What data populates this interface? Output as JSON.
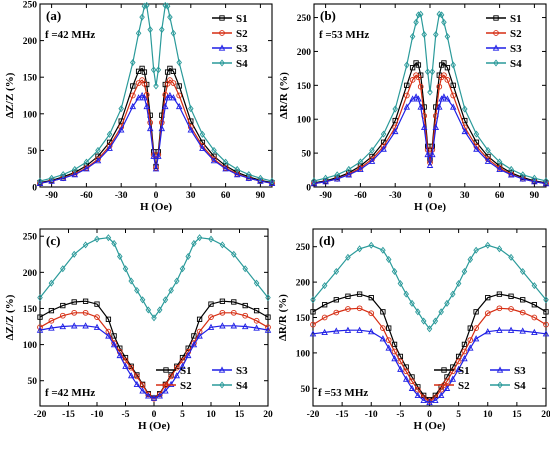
{
  "colors": {
    "S1": "#000000",
    "S2": "#d62d12",
    "S3": "#1f1fe6",
    "S4": "#2a9a9a"
  },
  "chart_data": [
    {
      "type": "line",
      "panel_label": "(a)",
      "annotation": "f =42 MHz",
      "xlabel": "H (Oe)",
      "ylabel": "ΔZ/Z (%)",
      "xlim": [
        -100,
        100
      ],
      "ylim": [
        0,
        250
      ],
      "xticks": [
        -90,
        -60,
        -30,
        0,
        30,
        60,
        90
      ],
      "yticks": [
        0,
        50,
        100,
        150,
        200,
        250
      ],
      "legend_position": "top-right",
      "legend_layout": "column",
      "x": [
        -100,
        -90,
        -80,
        -70,
        -60,
        -50,
        -40,
        -30,
        -20,
        -15,
        -12,
        -10,
        -8,
        -5,
        -2,
        0,
        2,
        5,
        8,
        10,
        12,
        15,
        20,
        30,
        40,
        50,
        60,
        70,
        80,
        90,
        100
      ],
      "series": [
        {
          "name": "S1",
          "values": [
            6,
            9,
            14,
            20,
            29,
            42,
            61,
            90,
            138,
            158,
            162,
            157,
            140,
            98,
            48,
            28,
            48,
            98,
            140,
            157,
            162,
            158,
            138,
            90,
            61,
            42,
            29,
            20,
            14,
            9,
            6
          ]
        },
        {
          "name": "S2",
          "values": [
            5,
            8,
            12,
            18,
            26,
            38,
            56,
            82,
            125,
            142,
            146,
            141,
            126,
            88,
            44,
            26,
            44,
            88,
            126,
            141,
            146,
            142,
            125,
            82,
            56,
            38,
            26,
            18,
            12,
            8,
            5
          ]
        },
        {
          "name": "S3",
          "values": [
            5,
            8,
            12,
            17,
            25,
            36,
            53,
            78,
            110,
            122,
            125,
            122,
            110,
            80,
            42,
            25,
            42,
            80,
            110,
            122,
            125,
            122,
            110,
            78,
            53,
            36,
            25,
            17,
            12,
            8,
            5
          ]
        },
        {
          "name": "S4",
          "values": [
            8,
            12,
            17,
            24,
            34,
            50,
            72,
            107,
            170,
            210,
            232,
            247,
            248,
            215,
            160,
            138,
            160,
            215,
            248,
            247,
            232,
            210,
            170,
            107,
            72,
            50,
            34,
            24,
            17,
            12,
            8
          ]
        }
      ]
    },
    {
      "type": "line",
      "panel_label": "(b)",
      "annotation": "f =53 MHz",
      "xlabel": "H (Oe)",
      "ylabel": "ΔR/R (%)",
      "xlim": [
        -100,
        100
      ],
      "ylim": [
        0,
        270
      ],
      "xticks": [
        -90,
        -60,
        -30,
        0,
        30,
        60,
        90
      ],
      "yticks": [
        0,
        50,
        100,
        150,
        200,
        250
      ],
      "legend_position": "top-right",
      "legend_layout": "column",
      "x": [
        -100,
        -90,
        -80,
        -70,
        -60,
        -50,
        -40,
        -30,
        -20,
        -15,
        -12,
        -10,
        -8,
        -5,
        -2,
        0,
        2,
        5,
        8,
        10,
        12,
        15,
        20,
        30,
        40,
        50,
        60,
        70,
        80,
        90,
        100
      ],
      "series": [
        {
          "name": "S1",
          "values": [
            6,
            9,
            14,
            21,
            31,
            45,
            66,
            98,
            150,
            176,
            183,
            180,
            165,
            118,
            60,
            40,
            60,
            118,
            165,
            180,
            183,
            176,
            150,
            98,
            66,
            45,
            31,
            21,
            14,
            9,
            6
          ]
        },
        {
          "name": "S2",
          "values": [
            5,
            8,
            12,
            19,
            28,
            41,
            60,
            88,
            135,
            158,
            165,
            162,
            148,
            105,
            55,
            36,
            55,
            105,
            148,
            162,
            165,
            158,
            135,
            88,
            60,
            41,
            28,
            19,
            12,
            8,
            5
          ]
        },
        {
          "name": "S3",
          "values": [
            5,
            8,
            12,
            18,
            26,
            38,
            56,
            82,
            118,
            130,
            133,
            130,
            118,
            88,
            48,
            32,
            48,
            88,
            118,
            130,
            133,
            130,
            118,
            82,
            56,
            38,
            26,
            18,
            12,
            8,
            5
          ]
        },
        {
          "name": "S4",
          "values": [
            9,
            13,
            18,
            26,
            37,
            54,
            78,
            115,
            180,
            222,
            243,
            254,
            255,
            225,
            170,
            140,
            170,
            225,
            255,
            254,
            243,
            222,
            180,
            115,
            78,
            54,
            37,
            26,
            18,
            13,
            9
          ]
        }
      ]
    },
    {
      "type": "line",
      "panel_label": "(c)",
      "annotation": "f =42 MHz",
      "xlabel": "H (Oe)",
      "ylabel": "ΔZ/Z (%)",
      "xlim": [
        -20,
        20
      ],
      "ylim": [
        15,
        260
      ],
      "xticks": [
        -20,
        -15,
        -10,
        -5,
        0,
        5,
        10,
        15,
        20
      ],
      "yticks": [
        50,
        100,
        150,
        200,
        250
      ],
      "legend_position": "bottom-right",
      "legend_layout": "grid",
      "x": [
        -20,
        -18,
        -16,
        -14,
        -12,
        -10,
        -8,
        -7,
        -6,
        -5,
        -4,
        -3,
        -2,
        -1,
        0,
        1,
        2,
        3,
        4,
        5,
        6,
        7,
        8,
        10,
        12,
        14,
        16,
        18,
        20
      ],
      "series": [
        {
          "name": "S1",
          "values": [
            138,
            147,
            154,
            159,
            160,
            156,
            135,
            112,
            95,
            82,
            70,
            58,
            45,
            32,
            26,
            32,
            45,
            58,
            70,
            82,
            95,
            112,
            135,
            156,
            160,
            159,
            154,
            147,
            138
          ]
        },
        {
          "name": "S2",
          "values": [
            124,
            133,
            140,
            144,
            144,
            138,
            118,
            102,
            90,
            78,
            68,
            56,
            44,
            31,
            25,
            31,
            44,
            56,
            68,
            78,
            90,
            102,
            118,
            138,
            144,
            144,
            140,
            133,
            124
          ]
        },
        {
          "name": "S3",
          "values": [
            120,
            123,
            125,
            126,
            126,
            124,
            112,
            100,
            85,
            70,
            57,
            45,
            36,
            29,
            26,
            29,
            36,
            45,
            57,
            70,
            85,
            100,
            112,
            124,
            126,
            126,
            125,
            123,
            120
          ]
        },
        {
          "name": "S4",
          "values": [
            165,
            185,
            205,
            225,
            238,
            246,
            248,
            240,
            222,
            205,
            188,
            175,
            162,
            148,
            137,
            148,
            162,
            175,
            188,
            205,
            222,
            240,
            248,
            246,
            238,
            225,
            205,
            185,
            165
          ]
        }
      ]
    },
    {
      "type": "line",
      "panel_label": "(d)",
      "annotation": "f =53 MHz",
      "xlabel": "H (Oe)",
      "ylabel": "ΔR/R (%)",
      "xlim": [
        -20,
        20
      ],
      "ylim": [
        25,
        275
      ],
      "xticks": [
        -20,
        -15,
        -10,
        -5,
        0,
        5,
        10,
        15,
        20
      ],
      "yticks": [
        50,
        100,
        150,
        200,
        250
      ],
      "legend_position": "bottom-right",
      "legend_layout": "grid",
      "x": [
        -20,
        -18,
        -16,
        -14,
        -12,
        -10,
        -8,
        -7,
        -6,
        -5,
        -4,
        -3,
        -2,
        -1,
        0,
        1,
        2,
        3,
        4,
        5,
        6,
        7,
        8,
        10,
        12,
        14,
        16,
        18,
        20
      ],
      "series": [
        {
          "name": "S1",
          "values": [
            158,
            168,
            175,
            180,
            183,
            178,
            158,
            135,
            112,
            95,
            80,
            66,
            52,
            40,
            34,
            40,
            52,
            66,
            80,
            95,
            112,
            135,
            158,
            178,
            183,
            180,
            175,
            168,
            158
          ]
        },
        {
          "name": "S2",
          "values": [
            140,
            150,
            157,
            162,
            163,
            156,
            135,
            118,
            102,
            88,
            74,
            60,
            48,
            37,
            32,
            37,
            48,
            60,
            74,
            88,
            102,
            118,
            135,
            156,
            163,
            162,
            157,
            150,
            140
          ]
        },
        {
          "name": "S3",
          "values": [
            127,
            129,
            131,
            132,
            132,
            130,
            120,
            107,
            92,
            77,
            63,
            50,
            40,
            33,
            30,
            33,
            40,
            50,
            63,
            77,
            92,
            107,
            120,
            130,
            132,
            132,
            131,
            129,
            127
          ]
        },
        {
          "name": "S4",
          "values": [
            175,
            195,
            215,
            235,
            247,
            252,
            245,
            232,
            215,
            198,
            183,
            170,
            158,
            145,
            134,
            145,
            158,
            170,
            183,
            198,
            215,
            232,
            245,
            252,
            247,
            235,
            215,
            195,
            175
          ]
        }
      ]
    }
  ]
}
